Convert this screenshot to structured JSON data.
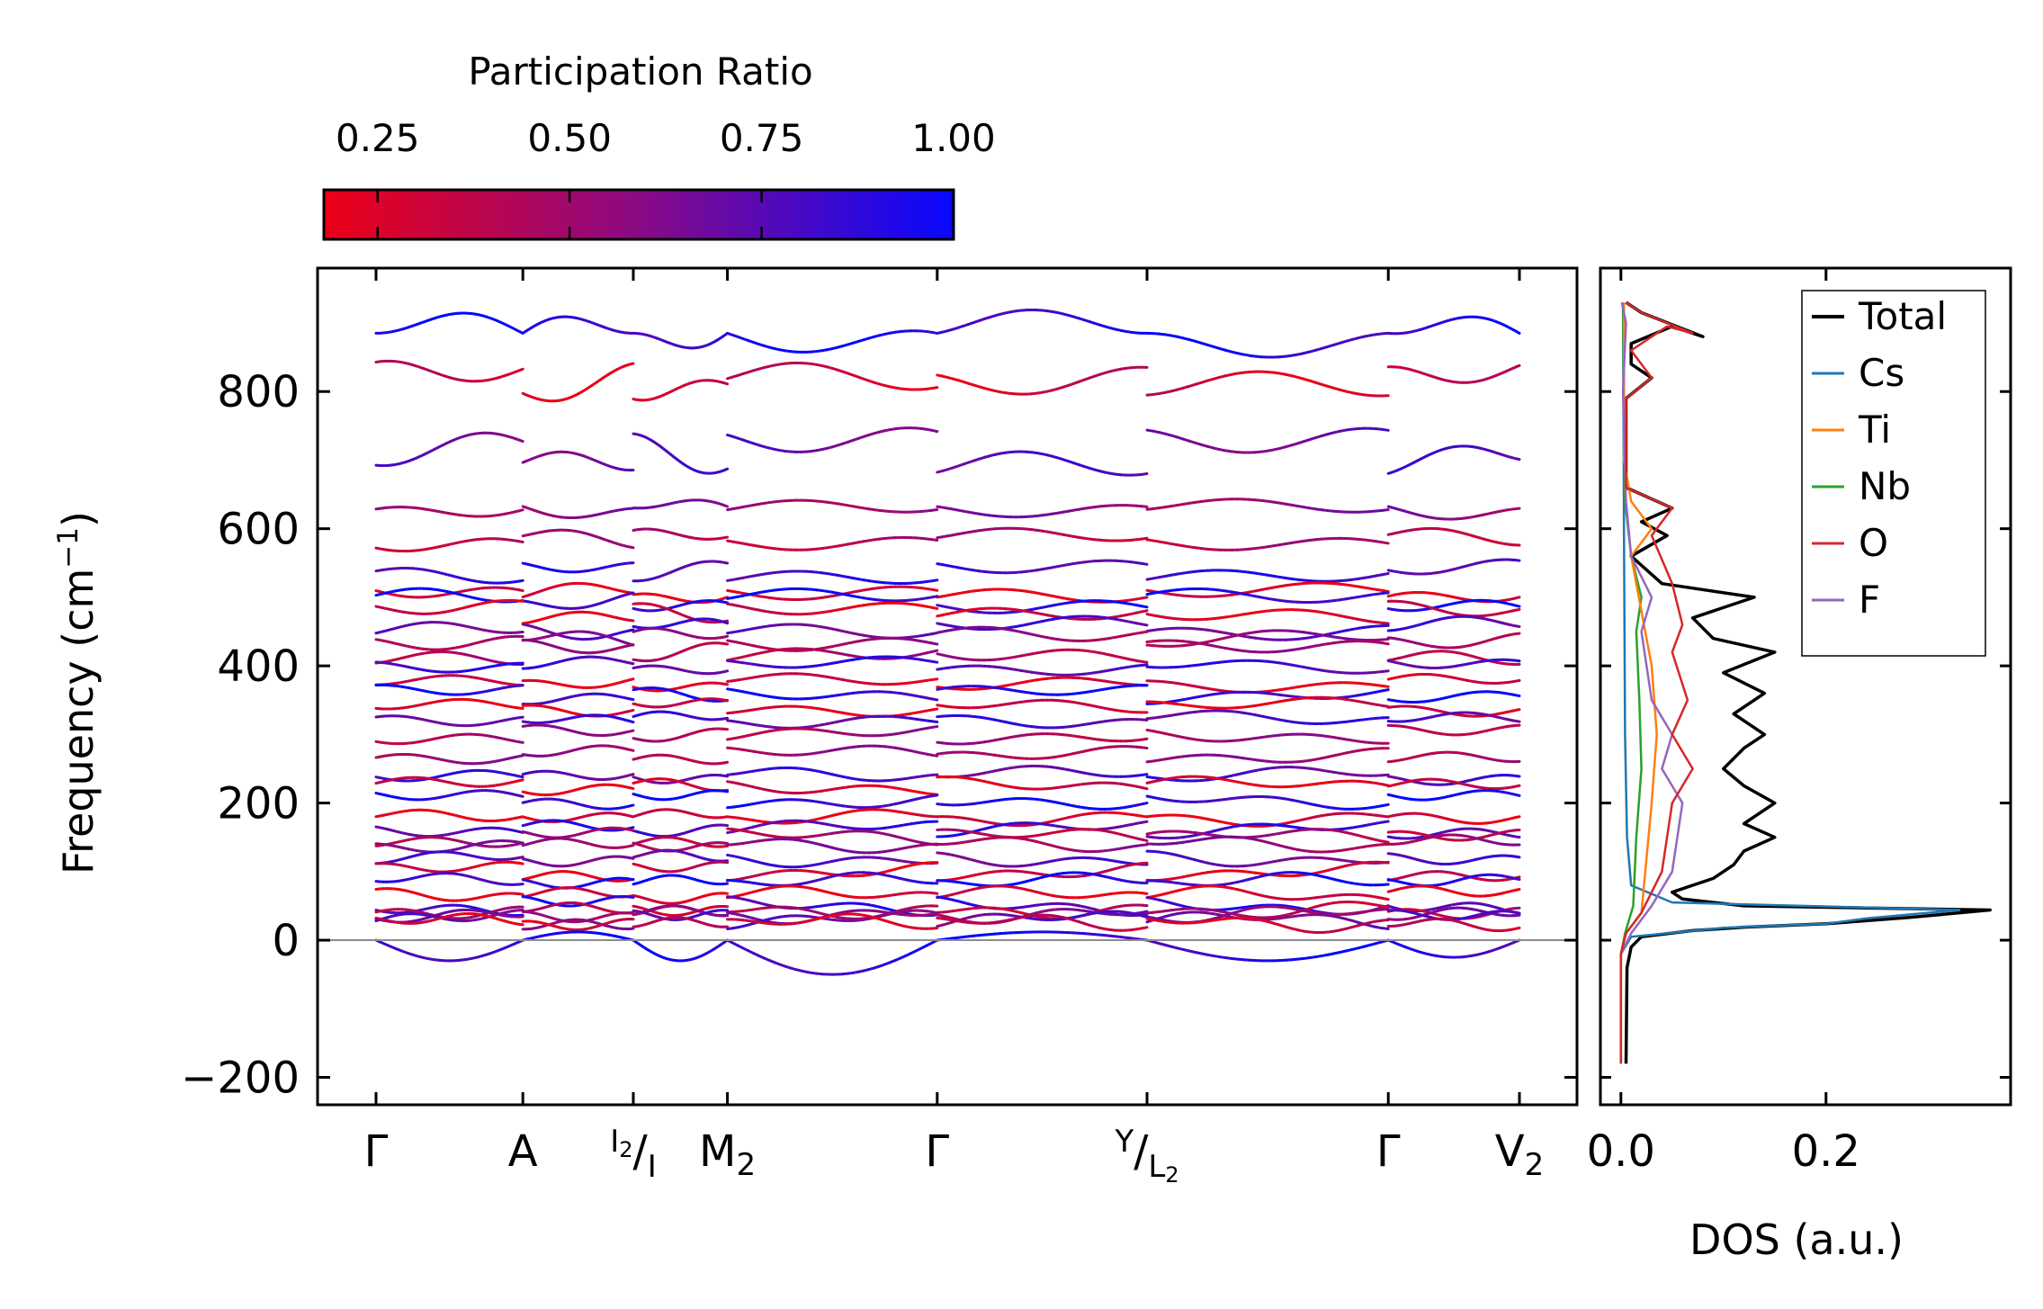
{
  "chart_data": [
    {
      "type": "band-structure",
      "ylabel_main": "Frequency (cm",
      "ylabel_sup": "−1",
      "ylabel_close": ")",
      "ylim": [
        -240,
        980
      ],
      "yticks": [
        -200,
        0,
        200,
        400,
        600,
        800
      ],
      "ytick_labels": [
        "−200",
        "0",
        "200",
        "400",
        "600",
        "800"
      ],
      "kpath_segments": [
        {
          "from": "Γ",
          "to": "A",
          "k": [
            0.0,
            0.1284
          ]
        },
        {
          "from": "A",
          "to": "I2|I",
          "k": [
            0.1284,
            0.225
          ]
        },
        {
          "from": "I2|I",
          "to": "M2",
          "k": [
            0.225,
            0.3073
          ]
        },
        {
          "from": "M2",
          "to": "Γ",
          "k": [
            0.3073,
            0.4908
          ]
        },
        {
          "from": "Γ",
          "to": "Y|L2",
          "k": [
            0.4908,
            0.6743
          ]
        },
        {
          "from": "Y|L2",
          "to": "Γ",
          "k": [
            0.6743,
            0.8853
          ]
        },
        {
          "from": "Γ",
          "to": "V2",
          "k": [
            0.8853,
            1.0
          ]
        }
      ],
      "xticks": [
        0.0,
        0.1284,
        0.225,
        0.3073,
        0.4908,
        0.6743,
        0.8853,
        1.0
      ],
      "xtick_labels": [
        {
          "main": "Γ"
        },
        {
          "main": "A"
        },
        {
          "pre_sup": "I",
          "pre_sup_sub": "2",
          "slash": "/",
          "post_sub": "I"
        },
        {
          "main": "M",
          "sub": "2"
        },
        {
          "main": "Γ"
        },
        {
          "pre_sup": "Y",
          "slash": "/",
          "post_sub": "L",
          "post_sub_sub": "2"
        },
        {
          "main": "Γ"
        },
        {
          "main": "V",
          "sub": "2"
        }
      ],
      "colorbar": {
        "label": "Participation Ratio",
        "range": [
          0.18,
          1.0
        ],
        "ticks": [
          0.25,
          0.5,
          0.75,
          1.0
        ],
        "tick_labels": [
          "0.25",
          "0.50",
          "0.75",
          "1.00"
        ],
        "color_low": "#ec0016",
        "color_mid": "#8a0a84",
        "color_high": "#0808ff"
      },
      "band_baselines_cm1": [
        885,
        815,
        712,
        630,
        585,
        537,
        505,
        495,
        478,
        455,
        440,
        420,
        400,
        375,
        358,
        340,
        322,
        300,
        270,
        240,
        225,
        205,
        180,
        162,
        150,
        140,
        120,
        100,
        85,
        65,
        50,
        45,
        38,
        30,
        25,
        0
      ],
      "acoustic_branch_minima_cm1": [
        -30,
        -50,
        -30,
        -25
      ],
      "zero_line": 0
    },
    {
      "type": "line",
      "xlabel": "DOS (a.u.)",
      "xlim": [
        -0.02,
        0.38
      ],
      "xticks": [
        0.0,
        0.2
      ],
      "xtick_labels": [
        "0.0",
        "0.2"
      ],
      "ylim": [
        -240,
        980
      ],
      "legend": {
        "position": "top-right",
        "entries": [
          "Total",
          "Cs",
          "Ti",
          "Nb",
          "O",
          "F"
        ]
      },
      "series": [
        {
          "name": "Total",
          "color": "#000000",
          "points": [
            [
              0.005,
              -180
            ],
            [
              0.006,
              -40
            ],
            [
              0.01,
              -10
            ],
            [
              0.02,
              5
            ],
            [
              0.07,
              14
            ],
            [
              0.12,
              19
            ],
            [
              0.2,
              24
            ],
            [
              0.28,
              33
            ],
            [
              0.36,
              44
            ],
            [
              0.12,
              50
            ],
            [
              0.06,
              60
            ],
            [
              0.05,
              70
            ],
            [
              0.09,
              90
            ],
            [
              0.11,
              110
            ],
            [
              0.12,
              130
            ],
            [
              0.15,
              150
            ],
            [
              0.12,
              170
            ],
            [
              0.15,
              200
            ],
            [
              0.12,
              225
            ],
            [
              0.1,
              250
            ],
            [
              0.12,
              280
            ],
            [
              0.14,
              300
            ],
            [
              0.11,
              330
            ],
            [
              0.14,
              360
            ],
            [
              0.1,
              390
            ],
            [
              0.15,
              420
            ],
            [
              0.09,
              440
            ],
            [
              0.07,
              470
            ],
            [
              0.13,
              500
            ],
            [
              0.04,
              520
            ],
            [
              0.01,
              560
            ],
            [
              0.045,
              590
            ],
            [
              0.02,
              610
            ],
            [
              0.05,
              630
            ],
            [
              0.005,
              660
            ],
            [
              0.005,
              790
            ],
            [
              0.03,
              820
            ],
            [
              0.01,
              840
            ],
            [
              0.01,
              870
            ],
            [
              0.05,
              895
            ],
            [
              0.08,
              880
            ],
            [
              0.02,
              915
            ],
            [
              0.005,
              930
            ]
          ]
        },
        {
          "name": "Cs",
          "color": "#1f77b4",
          "points": [
            [
              0.0,
              -180
            ],
            [
              0.0,
              -20
            ],
            [
              0.01,
              5
            ],
            [
              0.1,
              18
            ],
            [
              0.2,
              24
            ],
            [
              0.24,
              32
            ],
            [
              0.33,
              44
            ],
            [
              0.05,
              55
            ],
            [
              0.01,
              80
            ],
            [
              0.006,
              150
            ],
            [
              0.004,
              300
            ],
            [
              0.003,
              600
            ],
            [
              0.002,
              930
            ]
          ]
        },
        {
          "name": "Ti",
          "color": "#ff7f0e",
          "points": [
            [
              0.0,
              -180
            ],
            [
              0.0,
              -20
            ],
            [
              0.005,
              10
            ],
            [
              0.02,
              40
            ],
            [
              0.025,
              120
            ],
            [
              0.03,
              200
            ],
            [
              0.035,
              300
            ],
            [
              0.03,
              400
            ],
            [
              0.02,
              480
            ],
            [
              0.01,
              560
            ],
            [
              0.03,
              600
            ],
            [
              0.01,
              640
            ],
            [
              0.003,
              700
            ],
            [
              0.003,
              930
            ]
          ]
        },
        {
          "name": "Nb",
          "color": "#2ca02c",
          "points": [
            [
              0.0,
              -180
            ],
            [
              0.0,
              -20
            ],
            [
              0.004,
              10
            ],
            [
              0.012,
              50
            ],
            [
              0.015,
              150
            ],
            [
              0.02,
              250
            ],
            [
              0.018,
              350
            ],
            [
              0.015,
              450
            ],
            [
              0.02,
              500
            ],
            [
              0.01,
              560
            ],
            [
              0.004,
              640
            ],
            [
              0.002,
              930
            ]
          ]
        },
        {
          "name": "O",
          "color": "#d62728",
          "points": [
            [
              0.0,
              -180
            ],
            [
              0.0,
              -20
            ],
            [
              0.005,
              10
            ],
            [
              0.02,
              40
            ],
            [
              0.04,
              100
            ],
            [
              0.05,
              200
            ],
            [
              0.07,
              250
            ],
            [
              0.05,
              300
            ],
            [
              0.065,
              350
            ],
            [
              0.05,
              420
            ],
            [
              0.06,
              460
            ],
            [
              0.05,
              520
            ],
            [
              0.03,
              590
            ],
            [
              0.05,
              630
            ],
            [
              0.005,
              660
            ],
            [
              0.005,
              790
            ],
            [
              0.03,
              820
            ],
            [
              0.01,
              860
            ],
            [
              0.045,
              895
            ],
            [
              0.07,
              885
            ],
            [
              0.02,
              915
            ],
            [
              0.005,
              930
            ]
          ]
        },
        {
          "name": "F",
          "color": "#9467bd",
          "points": [
            [
              0.0,
              -180
            ],
            [
              0.0,
              -20
            ],
            [
              0.01,
              10
            ],
            [
              0.03,
              50
            ],
            [
              0.05,
              100
            ],
            [
              0.055,
              150
            ],
            [
              0.06,
              200
            ],
            [
              0.04,
              250
            ],
            [
              0.05,
              300
            ],
            [
              0.03,
              350
            ],
            [
              0.025,
              400
            ],
            [
              0.02,
              450
            ],
            [
              0.03,
              500
            ],
            [
              0.01,
              560
            ],
            [
              0.005,
              640
            ],
            [
              0.002,
              800
            ],
            [
              0.005,
              900
            ],
            [
              0.001,
              930
            ]
          ]
        }
      ]
    }
  ]
}
